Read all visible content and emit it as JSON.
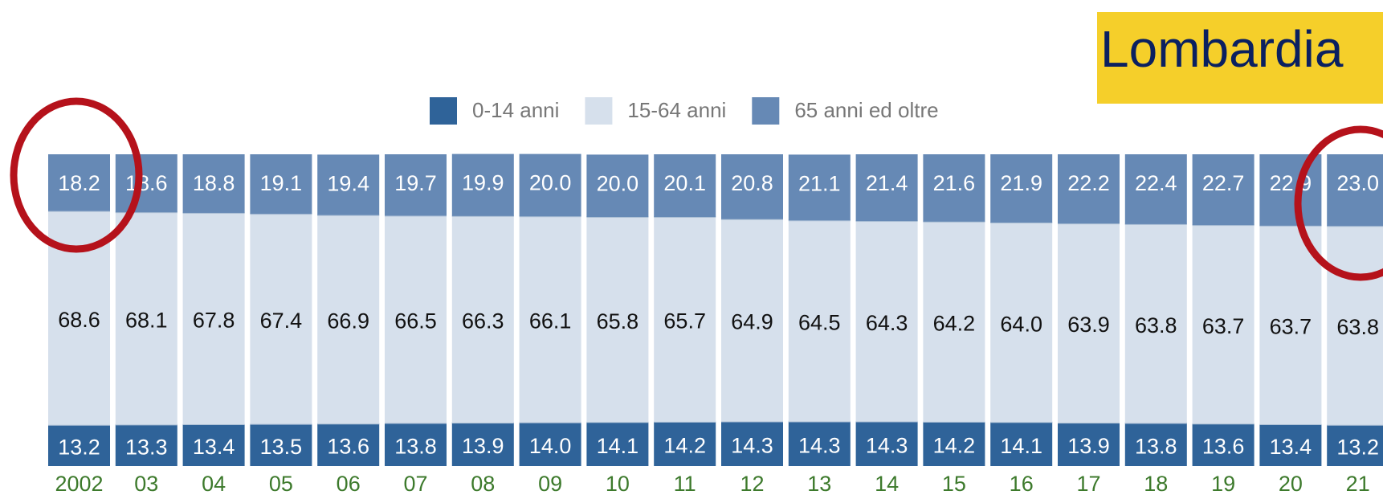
{
  "chart_data": {
    "type": "stacked_bar",
    "title": "Lombardia",
    "categories": [
      "2002",
      "03",
      "04",
      "05",
      "06",
      "07",
      "08",
      "09",
      "10",
      "11",
      "12",
      "13",
      "14",
      "15",
      "16",
      "17",
      "18",
      "19",
      "20",
      "21"
    ],
    "series": [
      {
        "name": "0-14 anni",
        "color": "#2f6399",
        "values": [
          13.2,
          13.3,
          13.4,
          13.5,
          13.6,
          13.8,
          13.9,
          14.0,
          14.1,
          14.2,
          14.3,
          14.3,
          14.3,
          14.2,
          14.1,
          13.9,
          13.8,
          13.6,
          13.4,
          13.2
        ],
        "value_labels": [
          "13.2",
          "13.3",
          "13.4",
          "13.5",
          "13.6",
          "13.8",
          "13.9",
          "14.0",
          "14.1",
          "14.2",
          "14.3",
          "14.3",
          "14.3",
          "14.2",
          "14.1",
          "13.9",
          "13.8",
          "13.6",
          "13.4",
          "13.2"
        ]
      },
      {
        "name": "15-64 anni",
        "color": "#d6e0ec",
        "values": [
          68.6,
          68.1,
          67.8,
          67.4,
          66.9,
          66.5,
          66.3,
          66.1,
          65.8,
          65.7,
          64.9,
          64.5,
          64.3,
          64.2,
          64.0,
          63.9,
          63.8,
          63.7,
          63.7,
          63.8
        ],
        "value_labels": [
          "68.6",
          "68.1",
          "67.8",
          "67.4",
          "66.9",
          "66.5",
          "66.3",
          "66.1",
          "65.8",
          "65.7",
          "64.9",
          "64.5",
          "64.3",
          "64.2",
          "64.0",
          "63.9",
          "63.8",
          "63.7",
          "63.7",
          "63.8"
        ]
      },
      {
        "name": "65 anni ed oltre",
        "color": "#6689b5",
        "values": [
          18.2,
          18.6,
          18.8,
          19.1,
          19.4,
          19.7,
          19.9,
          20.0,
          20.0,
          20.1,
          20.8,
          21.1,
          21.4,
          21.6,
          21.9,
          22.2,
          22.4,
          22.7,
          22.9,
          23.0
        ],
        "value_labels": [
          "18.2",
          "18.6",
          "18.8",
          "19.1",
          "19.4",
          "19.7",
          "19.9",
          "20.0",
          "20.0",
          "20.1",
          "20.8",
          "21.1",
          "21.4",
          "21.6",
          "21.9",
          "22.2",
          "22.4",
          "22.7",
          "22.9",
          "23.0"
        ]
      }
    ],
    "ylim": [
      0,
      100
    ]
  }
}
